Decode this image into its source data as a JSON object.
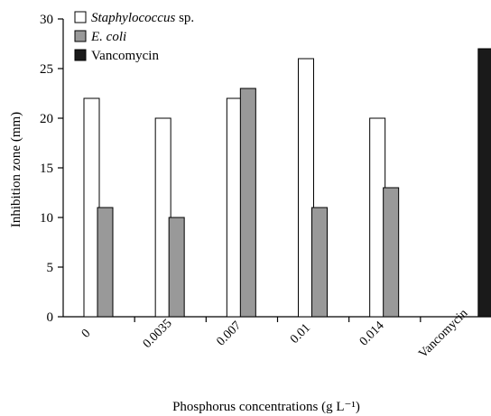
{
  "chart_data": {
    "type": "bar",
    "categories": [
      "0",
      "0.0035",
      "0.007",
      "0.01",
      "0.014",
      "Vancomycin"
    ],
    "series": [
      {
        "name": "Staphylococcus sp.",
        "name_parts": [
          "Staphylococcus",
          " sp."
        ],
        "color": "#ffffff",
        "values": [
          22,
          20,
          22,
          26,
          20,
          null
        ]
      },
      {
        "name": "E. coli",
        "color": "#999999",
        "values": [
          11,
          10,
          23,
          11,
          13,
          null
        ]
      },
      {
        "name": "Vancomycin",
        "color": "#1a1a1a",
        "values": [
          null,
          null,
          null,
          null,
          null,
          27
        ]
      }
    ],
    "xlabel": "Phosphorus concentrations (g L⁻¹)",
    "ylabel": "Inhibition zone (mm)",
    "ylim": [
      0,
      30
    ],
    "yticks": [
      "0",
      "5",
      "10",
      "15",
      "20",
      "25",
      "30"
    ],
    "grid": false,
    "legend_position": "top-left"
  }
}
